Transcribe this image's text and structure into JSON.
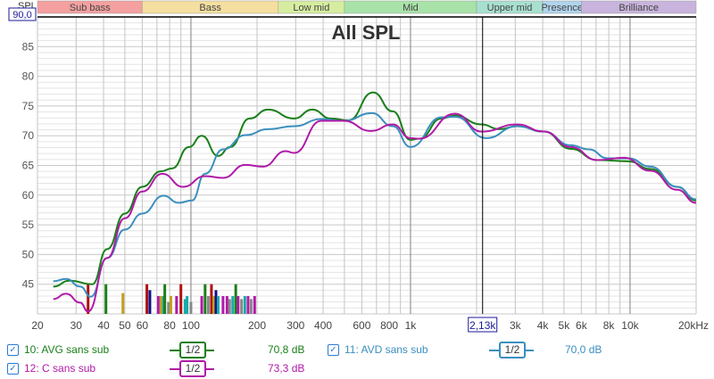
{
  "title": "All SPL",
  "y_axis": {
    "label": "SPL",
    "top_value": "90,0",
    "ticks": [
      "85",
      "80",
      "75",
      "70",
      "65",
      "60",
      "55",
      "50",
      "45"
    ],
    "range": [
      40,
      90
    ]
  },
  "x_axis": {
    "ticks": [
      "20",
      "30",
      "40",
      "50",
      "60",
      "80",
      "100",
      "200",
      "300",
      "400",
      "600",
      "800",
      "1k",
      "3k",
      "4k",
      "5k",
      "6k",
      "8k",
      "10k",
      "20kHz"
    ],
    "tick_freqs": [
      20,
      30,
      40,
      50,
      60,
      80,
      100,
      200,
      300,
      400,
      600,
      800,
      1000,
      3000,
      4000,
      5000,
      6000,
      8000,
      10000,
      20000
    ],
    "range": [
      20,
      20000
    ],
    "cursor_label": "2,13k",
    "cursor_freq": 2130
  },
  "bands": [
    {
      "label": "Sub bass",
      "from": 20,
      "to": 60,
      "color": "#f4a0a0"
    },
    {
      "label": "Bass",
      "from": 60,
      "to": 250,
      "color": "#f5dfa0"
    },
    {
      "label": "Low mid",
      "from": 250,
      "to": 500,
      "color": "#d6eda0"
    },
    {
      "label": "Mid",
      "from": 500,
      "to": 2000,
      "color": "#a8e2a8"
    },
    {
      "label": "Upper mid",
      "from": 2000,
      "to": 4000,
      "color": "#a8e0d0"
    },
    {
      "label": "Presence",
      "from": 4000,
      "to": 6000,
      "color": "#b0d4ec"
    },
    {
      "label": "Brilliance",
      "from": 6000,
      "to": 20000,
      "color": "#c8b4dc"
    }
  ],
  "chart_data": {
    "type": "line",
    "title": "All SPL",
    "xlabel": "Hz",
    "ylabel": "SPL",
    "xscale": "log",
    "xlim": [
      20,
      20000
    ],
    "ylim": [
      40,
      90
    ],
    "grid": true,
    "series": [
      {
        "name": "10: AVG sans sub",
        "color": "#1a7f1a",
        "smoothing": "1/2",
        "value": "70,8 dB",
        "points": [
          [
            23.6,
            44.6
          ],
          [
            28,
            45.6
          ],
          [
            35.5,
            45
          ],
          [
            41.5,
            50.9
          ],
          [
            50,
            56.9
          ],
          [
            60,
            61.4
          ],
          [
            73,
            64
          ],
          [
            82,
            64.5
          ],
          [
            98,
            68.1
          ],
          [
            112,
            70
          ],
          [
            133,
            66.6
          ],
          [
            151,
            68.1
          ],
          [
            185,
            72.9
          ],
          [
            224,
            74.4
          ],
          [
            295,
            72.9
          ],
          [
            357,
            74.4
          ],
          [
            433,
            72.9
          ],
          [
            522,
            72.6
          ],
          [
            675,
            77.3
          ],
          [
            830,
            74.1
          ],
          [
            1000,
            69.3
          ],
          [
            1097,
            69.5
          ],
          [
            1385,
            72.9
          ],
          [
            1594,
            73.4
          ],
          [
            2107,
            71.9
          ],
          [
            2540,
            71.1
          ],
          [
            3060,
            71.6
          ],
          [
            4050,
            70.7
          ],
          [
            5360,
            67.8
          ],
          [
            7100,
            65.9
          ],
          [
            9800,
            65.7
          ],
          [
            12400,
            64.4
          ],
          [
            16400,
            61.4
          ],
          [
            20000,
            59.1
          ]
        ]
      },
      {
        "name": "11: AVD sans sub",
        "color": "#3a8fbf",
        "smoothing": "1/2",
        "value": "70,0 dB",
        "points": [
          [
            23.6,
            45.5
          ],
          [
            27,
            45.9
          ],
          [
            31.3,
            44.6
          ],
          [
            35,
            42.9
          ],
          [
            41.5,
            49.4
          ],
          [
            50,
            54.2
          ],
          [
            60,
            56.9
          ],
          [
            75,
            59.9
          ],
          [
            88,
            58.7
          ],
          [
            101,
            59.1
          ],
          [
            116,
            63.6
          ],
          [
            140,
            67.7
          ],
          [
            177,
            70.1
          ],
          [
            224,
            71.1
          ],
          [
            295,
            71.6
          ],
          [
            392,
            72.8
          ],
          [
            496,
            72.5
          ],
          [
            667,
            73.8
          ],
          [
            830,
            71.6
          ],
          [
            1000,
            68.1
          ],
          [
            1385,
            73.1
          ],
          [
            1594,
            73.2
          ],
          [
            2210,
            69.6
          ],
          [
            3060,
            71.6
          ],
          [
            4050,
            70.7
          ],
          [
            5360,
            68.4
          ],
          [
            6500,
            67.7
          ],
          [
            7900,
            66.2
          ],
          [
            9800,
            66.2
          ],
          [
            12400,
            64.8
          ],
          [
            16400,
            61.4
          ],
          [
            20000,
            59.3
          ]
        ]
      },
      {
        "name": "12: C sans sub",
        "color": "#b01aa8",
        "smoothing": "1/2",
        "value": "73,3 dB",
        "points": [
          [
            23.6,
            42.5
          ],
          [
            27,
            43.4
          ],
          [
            31.3,
            41.9
          ],
          [
            34,
            40.4
          ],
          [
            41.5,
            49.4
          ],
          [
            50,
            56.1
          ],
          [
            60,
            60.6
          ],
          [
            74,
            63.6
          ],
          [
            92,
            61.4
          ],
          [
            116,
            63.2
          ],
          [
            140,
            62.9
          ],
          [
            177,
            65.1
          ],
          [
            213,
            64.8
          ],
          [
            270,
            67.4
          ],
          [
            295,
            67.1
          ],
          [
            392,
            72.5
          ],
          [
            496,
            72.5
          ],
          [
            660,
            70.8
          ],
          [
            830,
            71.9
          ],
          [
            1000,
            69.6
          ],
          [
            1097,
            69.5
          ],
          [
            1594,
            73.7
          ],
          [
            2107,
            70.7
          ],
          [
            3060,
            71.9
          ],
          [
            4050,
            70.7
          ],
          [
            5360,
            68.1
          ],
          [
            7100,
            65.9
          ],
          [
            9360,
            66.3
          ],
          [
            12400,
            64.1
          ],
          [
            16400,
            60.9
          ],
          [
            20000,
            58.7
          ]
        ]
      }
    ],
    "markers": [
      [
        34,
        45,
        "#b01010"
      ],
      [
        41,
        45,
        "#1a7f1a"
      ],
      [
        49,
        43.5,
        "#c0a020"
      ],
      [
        63,
        45,
        "#b01010"
      ],
      [
        65,
        44,
        "#10108a"
      ],
      [
        71,
        43,
        "#b01aa8"
      ],
      [
        73,
        43,
        "#c0a020"
      ],
      [
        75,
        43,
        "#1aaaaa"
      ],
      [
        76,
        45,
        "#1a7f1a"
      ],
      [
        79,
        42,
        "#888888"
      ],
      [
        81,
        43,
        "#c0a020"
      ],
      [
        86,
        43,
        "#b01aa8"
      ],
      [
        90,
        45,
        "#b01010"
      ],
      [
        94,
        42.5,
        "#1aaaaa"
      ],
      [
        96,
        43,
        "#1aaaaa"
      ],
      [
        100,
        42,
        "#888888"
      ],
      [
        112,
        43,
        "#b01aa8"
      ],
      [
        116,
        45,
        "#1a7f1a"
      ],
      [
        120,
        43,
        "#888888"
      ],
      [
        124,
        45,
        "#b01010"
      ],
      [
        127,
        43,
        "#c0a020"
      ],
      [
        130,
        44,
        "#10108a"
      ],
      [
        133,
        43,
        "#1aaaaa"
      ],
      [
        140,
        43,
        "#b01aa8"
      ],
      [
        146,
        43,
        "#b01aa8"
      ],
      [
        150,
        42.5,
        "#888888"
      ],
      [
        155,
        43,
        "#1aaaaa"
      ],
      [
        160,
        45,
        "#1a7f1a"
      ],
      [
        164,
        43,
        "#b01aa8"
      ],
      [
        170,
        42.5,
        "#888888"
      ],
      [
        176,
        43,
        "#1aaaaa"
      ],
      [
        182,
        43,
        "#b01aa8"
      ],
      [
        188,
        42.5,
        "#888888"
      ],
      [
        195,
        43,
        "#b01aa8"
      ]
    ]
  }
}
